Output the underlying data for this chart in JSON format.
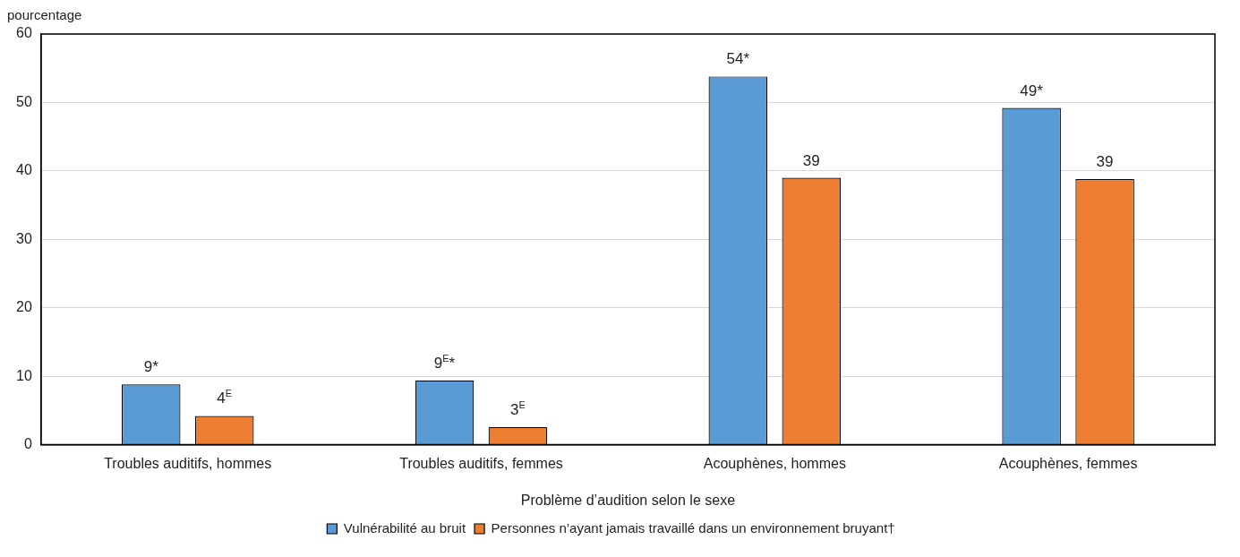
{
  "chart_data": {
    "type": "bar",
    "xlabel": "Problème d’audition selon le sexe",
    "ylabel": "pourcentage",
    "categories": [
      "Troubles auditifs, hommes",
      "Troubles auditifs, femmes",
      "Acouphènes, hommes",
      "Acouphènes, femmes"
    ],
    "series": [
      {
        "name": "Vulnérabilité au bruit",
        "color": "#5b9bd5",
        "values": [
          8.8,
          9.4,
          53.8,
          49.2
        ],
        "value_labels": [
          "9*",
          "9$^{E}$*",
          "54*",
          "49*"
        ]
      },
      {
        "name": "Personnes n’ayant jamais travaillé dans un environnement bruyant†",
        "color": "#ed7d31",
        "values": [
          4.2,
          2.6,
          39.0,
          38.8
        ],
        "value_labels": [
          "4$^{E}$",
          "3$^{E}$",
          "39",
          "39"
        ]
      }
    ],
    "ylim": [
      0,
      60
    ],
    "yticks": [
      0,
      10,
      20,
      30,
      40,
      50,
      60
    ],
    "grid": "y",
    "legend": "bottom"
  }
}
